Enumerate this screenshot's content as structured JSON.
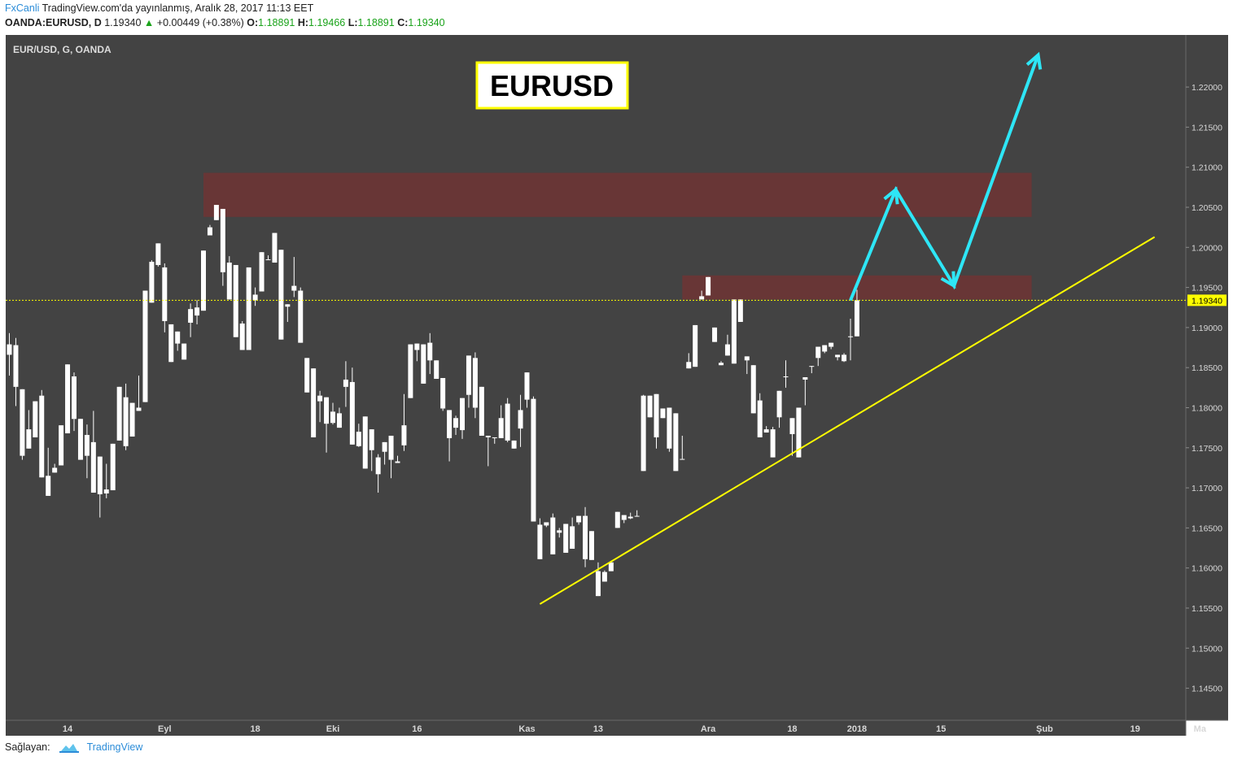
{
  "header": {
    "brand": "FxCanli",
    "published": "TradingView.com'da yayınlanmış, Aralık 28, 2017 11:13 EET",
    "symbol": "OANDA:EURUSD, D",
    "last": "1.19340",
    "change": "+0.00449 (+0.38%)",
    "o_label": "O:",
    "o_value": "1.18891",
    "h_label": "H:",
    "h_value": "1.19466",
    "l_label": "L:",
    "l_value": "1.18891",
    "c_label": "C:",
    "c_value": "1.19340"
  },
  "footer": {
    "provider_label": "Sağlayan:",
    "provider_name": "TradingView"
  },
  "colors": {
    "panel_bg": "#434343",
    "axis_bg": "#434343",
    "candle": "#ffffff",
    "trendline": "#ffff00",
    "arrow": "#2ee6f6",
    "zone": "#6b3535",
    "price_marker": "#ffff00"
  },
  "chart_data": {
    "type": "candlestick",
    "instrument_label": "EUR/USD, G, OANDA",
    "title_badge": "EURUSD",
    "current_price": 1.1934,
    "current_price_label": "1.19340",
    "ylim": [
      1.141,
      1.2265
    ],
    "y_ticks": [
      "1.22000",
      "1.21500",
      "1.21000",
      "1.20500",
      "1.20000",
      "1.19500",
      "1.19000",
      "1.18500",
      "1.18000",
      "1.17500",
      "1.17000",
      "1.16500",
      "1.16000",
      "1.15500",
      "1.15000",
      "1.14500"
    ],
    "x_tick_labels": [
      {
        "label": "14",
        "i": 9
      },
      {
        "label": "Eyl",
        "i": 24
      },
      {
        "label": "18",
        "i": 38
      },
      {
        "label": "Eki",
        "i": 50
      },
      {
        "label": "16",
        "i": 63
      },
      {
        "label": "Kas",
        "i": 80
      },
      {
        "label": "13",
        "i": 91
      },
      {
        "label": "Ara",
        "i": 108
      },
      {
        "label": "18",
        "i": 121
      },
      {
        "label": "2018",
        "i": 131
      },
      {
        "label": "15",
        "i": 144
      },
      {
        "label": "Şub",
        "i": 160
      },
      {
        "label": "19",
        "i": 174
      },
      {
        "label": "Ma",
        "i": 184
      }
    ],
    "grid": false,
    "candles": [
      [
        1.1866,
        1.1893,
        1.184,
        1.1879
      ],
      [
        1.1878,
        1.1887,
        1.1802,
        1.1826
      ],
      [
        1.1823,
        1.1808,
        1.1735,
        1.174
      ],
      [
        1.1749,
        1.1797,
        1.1751,
        1.1773
      ],
      [
        1.1763,
        1.1805,
        1.177,
        1.1808
      ],
      [
        1.1815,
        1.1822,
        1.1719,
        1.1713
      ],
      [
        1.1715,
        1.175,
        1.17,
        1.169
      ],
      [
        1.1719,
        1.173,
        1.1724,
        1.1725
      ],
      [
        1.1728,
        1.1758,
        1.175,
        1.1778
      ],
      [
        1.1768,
        1.1808,
        1.1826,
        1.1854
      ],
      [
        1.1839,
        1.1844,
        1.1771,
        1.1786
      ],
      [
        1.1786,
        1.1772,
        1.1762,
        1.1735
      ],
      [
        1.1766,
        1.1779,
        1.1712,
        1.174
      ],
      [
        1.1757,
        1.1796,
        1.1745,
        1.1694
      ],
      [
        1.1739,
        1.172,
        1.1663,
        1.1692
      ],
      [
        1.1698,
        1.173,
        1.1687,
        1.1693
      ],
      [
        1.1697,
        1.1749,
        1.1746,
        1.1755
      ],
      [
        1.1759,
        1.1815,
        1.1801,
        1.1826
      ],
      [
        1.1813,
        1.183,
        1.1747,
        1.1752
      ],
      [
        1.1764,
        1.18,
        1.1796,
        1.1806
      ],
      [
        1.1796,
        1.184,
        1.1803,
        1.18
      ],
      [
        1.1807,
        1.1912,
        1.1928,
        1.1946
      ],
      [
        1.1931,
        1.1984,
        1.1982,
        1.1982
      ],
      [
        1.1978,
        1.198,
        1.1976,
        1.2005
      ],
      [
        1.1975,
        1.198,
        1.1894,
        1.1908
      ],
      [
        1.1904,
        1.1904,
        1.19,
        1.1857
      ],
      [
        1.1895,
        1.189,
        1.1871,
        1.188
      ],
      [
        1.188,
        1.1863,
        1.189,
        1.186
      ],
      [
        1.1906,
        1.193,
        1.1888,
        1.1923
      ],
      [
        1.1915,
        1.1934,
        1.1904,
        1.1925
      ],
      [
        1.1921,
        1.194,
        1.1925,
        1.1996
      ],
      [
        1.2015,
        1.2028,
        1.2028,
        1.2025
      ],
      [
        1.2034,
        1.2042,
        1.204,
        1.2053
      ],
      [
        1.2048,
        1.1953,
        1.1952,
        1.1969
      ],
      [
        1.1981,
        1.1989,
        1.1953,
        1.1935
      ],
      [
        1.1978,
        1.1948,
        1.1895,
        1.1888
      ],
      [
        1.1905,
        1.1908,
        1.1879,
        1.1872
      ],
      [
        1.1872,
        1.1972,
        1.1924,
        1.1975
      ],
      [
        1.1941,
        1.195,
        1.1927,
        1.1934
      ],
      [
        1.1945,
        1.1974,
        1.1946,
        1.1994
      ],
      [
        1.1985,
        1.199,
        1.1989,
        1.1985
      ],
      [
        1.1981,
        1.2011,
        1.1983,
        1.2018
      ],
      [
        1.1997,
        1.1993,
        1.1911,
        1.1885
      ],
      [
        1.1926,
        1.1928,
        1.1907,
        1.1929
      ],
      [
        1.1946,
        1.1988,
        1.1938,
        1.1952
      ],
      [
        1.1946,
        1.195,
        1.1927,
        1.1881
      ],
      [
        1.1862,
        1.1849,
        1.187,
        1.1819
      ],
      [
        1.1849,
        1.1795,
        1.1817,
        1.1763
      ],
      [
        1.1815,
        1.1821,
        1.1782,
        1.1808
      ],
      [
        1.1813,
        1.1813,
        1.1744,
        1.178
      ],
      [
        1.1795,
        1.1806,
        1.1779,
        1.1781
      ],
      [
        1.1793,
        1.18,
        1.1794,
        1.1775
      ],
      [
        1.1835,
        1.1858,
        1.1801,
        1.1826
      ],
      [
        1.1832,
        1.185,
        1.1764,
        1.1754
      ],
      [
        1.177,
        1.178,
        1.1751,
        1.1752
      ],
      [
        1.1789,
        1.1772,
        1.1753,
        1.1724
      ],
      [
        1.1747,
        1.1755,
        1.1721,
        1.1773
      ],
      [
        1.1738,
        1.1742,
        1.1694,
        1.1717
      ],
      [
        1.1745,
        1.1738,
        1.1729,
        1.1757
      ],
      [
        1.1735,
        1.1765,
        1.1712,
        1.1765
      ],
      [
        1.1733,
        1.174,
        1.1737,
        1.1731
      ],
      [
        1.1778,
        1.1817,
        1.1746,
        1.1753
      ],
      [
        1.1812,
        1.182,
        1.186,
        1.1879
      ],
      [
        1.188,
        1.188,
        1.1858,
        1.1872
      ],
      [
        1.183,
        1.186,
        1.1849,
        1.1879
      ],
      [
        1.1881,
        1.1893,
        1.1842,
        1.1859
      ],
      [
        1.1859,
        1.1855,
        1.1847,
        1.1836
      ],
      [
        1.1837,
        1.1823,
        1.1796,
        1.1799
      ],
      [
        1.1797,
        1.1796,
        1.1733,
        1.1762
      ],
      [
        1.1787,
        1.179,
        1.1766,
        1.1775
      ],
      [
        1.1772,
        1.1803,
        1.1761,
        1.1812
      ],
      [
        1.1816,
        1.1864,
        1.18,
        1.1865
      ],
      [
        1.1862,
        1.1869,
        1.1787,
        1.18
      ],
      [
        1.1826,
        1.178,
        1.1765,
        1.1765
      ],
      [
        1.1765,
        1.1753,
        1.1727,
        1.1763
      ],
      [
        1.1763,
        1.175,
        1.1755,
        1.1763
      ],
      [
        1.1762,
        1.1803,
        1.1768,
        1.1787
      ],
      [
        1.1805,
        1.1812,
        1.1757,
        1.1759
      ],
      [
        1.1759,
        1.1753,
        1.1753,
        1.1749
      ],
      [
        1.1797,
        1.1816,
        1.1751,
        1.1774
      ],
      [
        1.181,
        1.1805,
        1.18,
        1.1844
      ],
      [
        1.1811,
        1.1814,
        1.1658,
        1.1658
      ],
      [
        1.1654,
        1.1662,
        1.1615,
        1.1611
      ],
      [
        1.1653,
        1.1651,
        1.1651,
        1.1657
      ],
      [
        1.1663,
        1.1668,
        1.1618,
        1.1617
      ],
      [
        1.1647,
        1.165,
        1.1638,
        1.1644
      ],
      [
        1.1619,
        1.1628,
        1.1632,
        1.1655
      ],
      [
        1.1652,
        1.1663,
        1.164,
        1.1624
      ],
      [
        1.1657,
        1.1661,
        1.1654,
        1.1665
      ],
      [
        1.1665,
        1.1676,
        1.1601,
        1.1611
      ],
      [
        1.1646,
        1.1635,
        1.1621,
        1.161
      ],
      [
        1.1596,
        1.1607,
        1.1599,
        1.1565
      ],
      [
        1.1583,
        1.1597,
        1.1597,
        1.1595
      ],
      [
        1.1596,
        1.1607,
        1.1602,
        1.1607
      ],
      [
        1.165,
        1.1662,
        1.1658,
        1.167
      ],
      [
        1.166,
        1.166,
        1.1656,
        1.1666
      ],
      [
        1.1662,
        1.1669,
        1.1661,
        1.1664
      ],
      [
        1.1665,
        1.1672,
        1.1665,
        1.1664
      ],
      [
        1.1721,
        1.1816,
        1.1798,
        1.1815
      ],
      [
        1.1815,
        1.1808,
        1.1808,
        1.1788
      ],
      [
        1.1817,
        1.18,
        1.1749,
        1.1763
      ],
      [
        1.1787,
        1.179,
        1.1787,
        1.1799
      ],
      [
        1.1749,
        1.1749,
        1.1745,
        1.18
      ],
      [
        1.1793,
        1.1792,
        1.1732,
        1.1721
      ],
      [
        1.1736,
        1.1765,
        1.1738,
        1.1736
      ],
      [
        1.1849,
        1.1868,
        1.1853,
        1.1857
      ],
      [
        1.1851,
        1.1903,
        1.187,
        1.1903
      ],
      [
        1.1939,
        1.1946,
        1.1935,
        1.1935
      ],
      [
        1.194,
        1.196,
        1.1962,
        1.1963
      ],
      [
        1.19,
        1.1898,
        1.1891,
        1.1882
      ],
      [
        1.1853,
        1.1858,
        1.1871,
        1.1856
      ],
      [
        1.1879,
        1.1891,
        1.189,
        1.1865
      ],
      [
        1.1935,
        1.1904,
        1.186,
        1.1855
      ],
      [
        1.1907,
        1.1921,
        1.1907,
        1.1935
      ],
      [
        1.1864,
        1.1853,
        1.1842,
        1.1859
      ],
      [
        1.1853,
        1.181,
        1.1809,
        1.1793
      ],
      [
        1.1809,
        1.1818,
        1.1779,
        1.1763
      ],
      [
        1.1773,
        1.1777,
        1.177,
        1.1769
      ],
      [
        1.1773,
        1.1776,
        1.1748,
        1.1738
      ],
      [
        1.1821,
        1.1814,
        1.1775,
        1.1788
      ],
      [
        1.1838,
        1.1859,
        1.1825,
        1.1839
      ],
      [
        1.1767,
        1.1774,
        1.174,
        1.1787
      ],
      [
        1.18,
        1.18,
        1.1757,
        1.1738
      ],
      [
        1.1835,
        1.1826,
        1.1803,
        1.1838
      ],
      [
        1.1852,
        1.1849,
        1.1843,
        1.1852
      ],
      [
        1.1876,
        1.1871,
        1.1852,
        1.1862
      ],
      [
        1.187,
        1.1873,
        1.1868,
        1.1878
      ],
      [
        1.1881,
        1.1876,
        1.1873,
        1.1876
      ],
      [
        1.1866,
        1.1865,
        1.1859,
        1.1863
      ],
      [
        1.1866,
        1.1868,
        1.1857,
        1.1858
      ],
      [
        1.1889,
        1.1911,
        1.1859,
        1.1889
      ],
      [
        1.1889,
        1.1947,
        1.1889,
        1.1934
      ]
    ],
    "zones": [
      {
        "top": 1.2093,
        "bottom": 1.2038,
        "from_i": 30,
        "to_i": 158
      },
      {
        "top": 1.1965,
        "bottom": 1.1935,
        "from_i": 104,
        "to_i": 158
      }
    ],
    "trendline": [
      {
        "i": 82,
        "price": 1.1555
      },
      {
        "i": 177,
        "price": 1.2013
      }
    ],
    "projection_path": [
      {
        "i": 130,
        "price": 1.1934
      },
      {
        "i": 137,
        "price": 1.2072
      },
      {
        "i": 146,
        "price": 1.1952
      },
      {
        "i": 159,
        "price": 1.224
      }
    ]
  }
}
